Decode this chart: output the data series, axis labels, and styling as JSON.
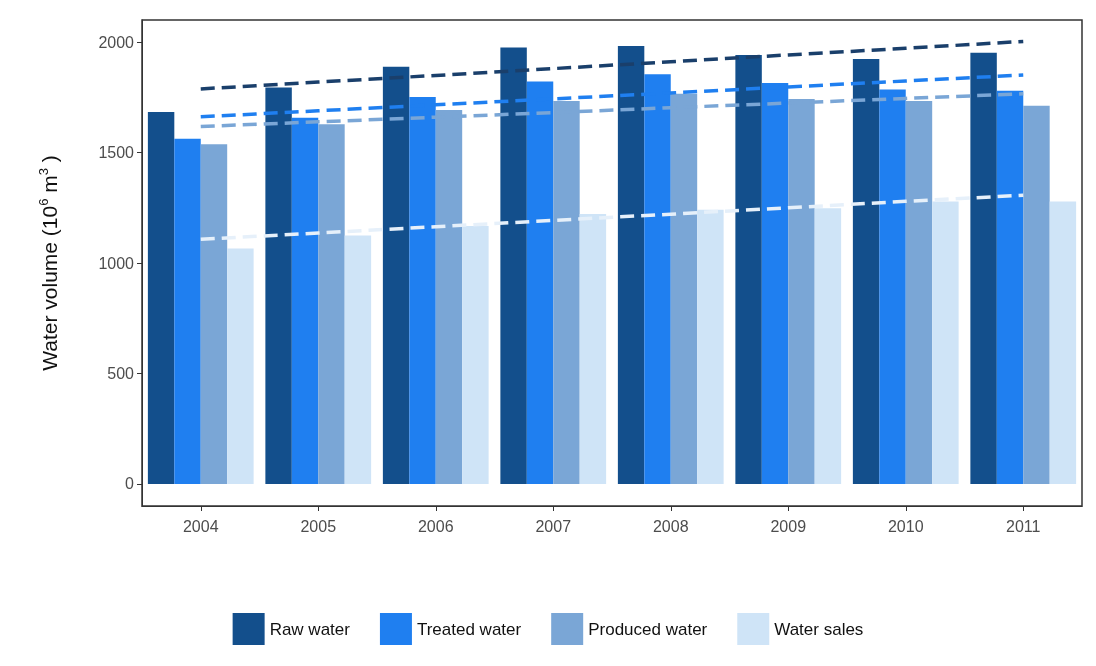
{
  "chart_data": {
    "type": "bar",
    "ylabel": "Water volume (10$^{6}$ m$^{3}$ )",
    "categories": [
      "2004",
      "2005",
      "2006",
      "2007",
      "2008",
      "2009",
      "2010",
      "2011"
    ],
    "series": [
      {
        "name": "Raw water",
        "color": "#134f8c",
        "values": [
          1683,
          1795,
          1888,
          1975,
          1982,
          1941,
          1923,
          1952
        ]
      },
      {
        "name": "Treated water",
        "color": "#1f7ff0",
        "values": [
          1562,
          1657,
          1752,
          1822,
          1854,
          1815,
          1785,
          1780
        ]
      },
      {
        "name": "Produced water",
        "color": "#7aa6d6",
        "values": [
          1537,
          1628,
          1693,
          1733,
          1766,
          1742,
          1733,
          1712
        ]
      },
      {
        "name": "Water sales",
        "color": "#cfe4f7",
        "values": [
          1066,
          1125,
          1168,
          1222,
          1241,
          1248,
          1278,
          1278
        ]
      },
      {
        "type": "line",
        "color": "#1a3f6b",
        "values": [
          1788,
          1819,
          1849,
          1880,
          1911,
          1942,
          1972,
          2003
        ],
        "line_style": "dashed",
        "marker": "none"
      },
      {
        "type": "line",
        "color": "#1f7ff0",
        "values": [
          1662,
          1689,
          1716,
          1743,
          1770,
          1797,
          1824,
          1851
        ],
        "line_style": "dashed",
        "marker": "none"
      },
      {
        "type": "line",
        "color": "#7aa6d6",
        "values": [
          1618,
          1639,
          1660,
          1681,
          1703,
          1724,
          1745,
          1766
        ],
        "line_style": "dashed",
        "marker": "none"
      },
      {
        "type": "line",
        "color": "#e6f0fa",
        "values": [
          1107,
          1136,
          1164,
          1193,
          1221,
          1250,
          1279,
          1307
        ],
        "line_style": "dashed",
        "marker": "none"
      }
    ],
    "ylim": [
      -100,
      2100
    ],
    "yticks": [
      0,
      500,
      1000,
      1500,
      2000
    ],
    "grid": false,
    "legend": "bottom"
  }
}
